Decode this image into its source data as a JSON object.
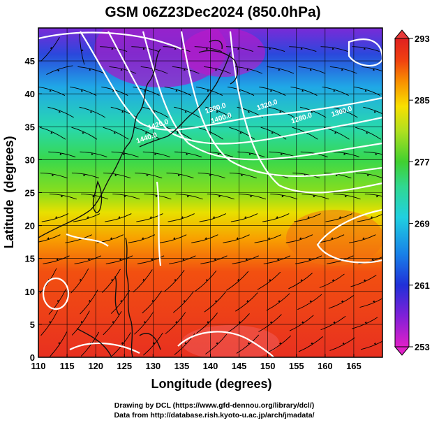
{
  "chart_data": {
    "type": "heatmap",
    "title": "GSM 06Z23Dec2024 (850.0hPa)",
    "xlabel": "Longitude (degrees)",
    "ylabel": "Latitude  (degrees)",
    "xlim": [
      110,
      170
    ],
    "ylim": [
      0,
      50
    ],
    "x_ticks": [
      110,
      115,
      120,
      125,
      130,
      135,
      140,
      145,
      150,
      155,
      160,
      165
    ],
    "y_ticks": [
      0,
      5,
      10,
      15,
      20,
      25,
      30,
      35,
      40,
      45
    ],
    "grid": true,
    "field": "temperature (filled color)",
    "colorbar": {
      "min": 253,
      "max": 293,
      "ticks": [
        253,
        261,
        269,
        277,
        285,
        293
      ],
      "colors": [
        "#e020c8",
        "#7020d8",
        "#1830d8",
        "#1890e8",
        "#20d0e0",
        "#30d890",
        "#50d020",
        "#b8e020",
        "#f8e000",
        "#f89000",
        "#f04010",
        "#e02020"
      ]
    },
    "contour_labels": [
      {
        "text": "1380.0",
        "lon": 141,
        "lat": 37.5
      },
      {
        "text": "1400.0",
        "lon": 142,
        "lat": 36
      },
      {
        "text": "1420.0",
        "lon": 131,
        "lat": 35
      },
      {
        "text": "1440.0",
        "lon": 129,
        "lat": 33
      },
      {
        "text": "1320.0",
        "lon": 150,
        "lat": 38
      },
      {
        "text": "1280.0",
        "lon": 156,
        "lat": 36
      },
      {
        "text": "1300.0",
        "lon": 163,
        "lat": 37
      }
    ]
  },
  "footer": {
    "line1": "Drawing by DCL (https://www.gfd-dennou.org/library/dcl/)",
    "line2": "Data from http://database.rish.kyoto-u.ac.jp/arch/jmadata/"
  }
}
